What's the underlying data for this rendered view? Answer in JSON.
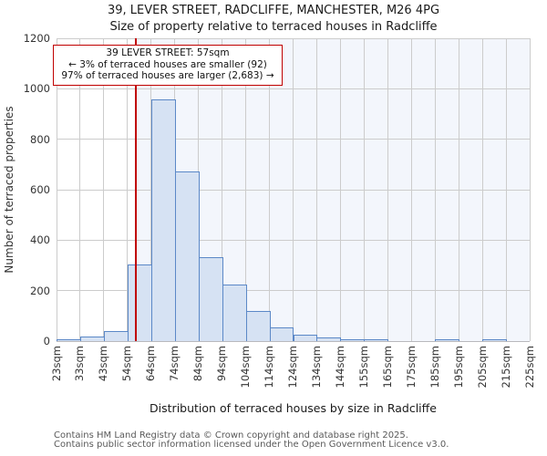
{
  "title": {
    "line1": "39, LEVER STREET, RADCLIFFE, MANCHESTER, M26 4PG",
    "line2": "Size of property relative to terraced houses in Radcliffe"
  },
  "annotation": {
    "line1": "39 LEVER STREET: 57sqm",
    "line2": "← 3% of terraced houses are smaller (92)",
    "line3": "97% of terraced houses are larger (2,683) →"
  },
  "axes": {
    "y_title": "Number of terraced properties",
    "x_title": "Distribution of terraced houses by size in Radcliffe"
  },
  "footer": {
    "line1": "Contains HM Land Registry data © Crown copyright and database right 2025.",
    "line2": "Contains public sector information licensed under the Open Government Licence v3.0."
  },
  "chart_data": {
    "type": "bar",
    "title": "Size of property relative to terraced houses in Radcliffe",
    "xlabel": "Distribution of terraced houses by size in Radcliffe",
    "ylabel": "Number of terraced properties",
    "x_tick_labels": [
      "23sqm",
      "33sqm",
      "43sqm",
      "54sqm",
      "64sqm",
      "74sqm",
      "84sqm",
      "94sqm",
      "104sqm",
      "114sqm",
      "124sqm",
      "134sqm",
      "144sqm",
      "155sqm",
      "165sqm",
      "175sqm",
      "185sqm",
      "195sqm",
      "205sqm",
      "215sqm",
      "225sqm"
    ],
    "bin_edges_sqm": [
      23,
      33,
      43,
      54,
      64,
      74,
      84,
      94,
      104,
      114,
      124,
      134,
      144,
      155,
      165,
      175,
      185,
      195,
      205,
      215,
      225
    ],
    "values": [
      5,
      15,
      35,
      300,
      955,
      670,
      330,
      220,
      115,
      50,
      22,
      12,
      4,
      3,
      0,
      0,
      3,
      0,
      3,
      0
    ],
    "ylim": [
      0,
      1200
    ],
    "yticks": [
      0,
      200,
      400,
      600,
      800,
      1000,
      1200
    ],
    "xlim_sqm": [
      23,
      225
    ],
    "grid": true,
    "legend": false,
    "marker": {
      "label": "39 LEVER STREET",
      "value_sqm": 57,
      "smaller_pct": "3%",
      "smaller_count": "92",
      "larger_pct": "97%",
      "larger_count": "2,683"
    },
    "colors": {
      "bar_fill": "#d6e2f3",
      "bar_border": "#5b88c7",
      "marker_line": "#c00000",
      "annotation_border": "#c00000",
      "shade_right_of_marker": "#f3f6fc",
      "grid": "#cccccc"
    }
  }
}
